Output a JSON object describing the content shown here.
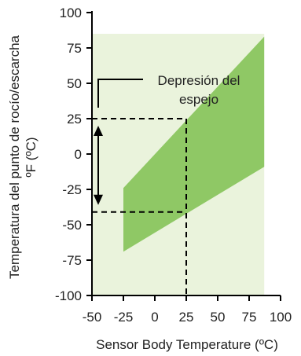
{
  "chart_data": {
    "type": "area",
    "title": "",
    "xlabel": "Sensor Body Temperature (ºC)",
    "ylabel": "Temperatura del punto de rocío/escarcha",
    "ylabel_unit": "ºF (ºC)",
    "xlim": [
      -50,
      100
    ],
    "ylim": [
      -100,
      100
    ],
    "x_ticks": [
      -50,
      -25,
      0,
      25,
      50,
      75,
      100
    ],
    "y_ticks": [
      100,
      75,
      50,
      25,
      0,
      -25,
      -50,
      -75,
      -100
    ],
    "grid": false,
    "operating_region": {
      "x": [
        -50,
        87
      ],
      "y": [
        -100,
        85
      ]
    },
    "band": {
      "upper": [
        {
          "x": -25,
          "y": -24
        },
        {
          "x": 87,
          "y": 83
        }
      ],
      "lower": [
        {
          "x": -25,
          "y": -69
        },
        {
          "x": 87,
          "y": -9
        }
      ]
    },
    "guide_lines": {
      "sensor_temp": 25,
      "upper_dew_point": 25,
      "lower_dew_point": -41
    },
    "annotations": [
      {
        "text_lines": [
          "Depresión del",
          "espejo"
        ]
      }
    ],
    "colors": {
      "region": "#eaf3dc",
      "band": "#8fc865",
      "axis": "#000000",
      "text": "#222222"
    }
  }
}
